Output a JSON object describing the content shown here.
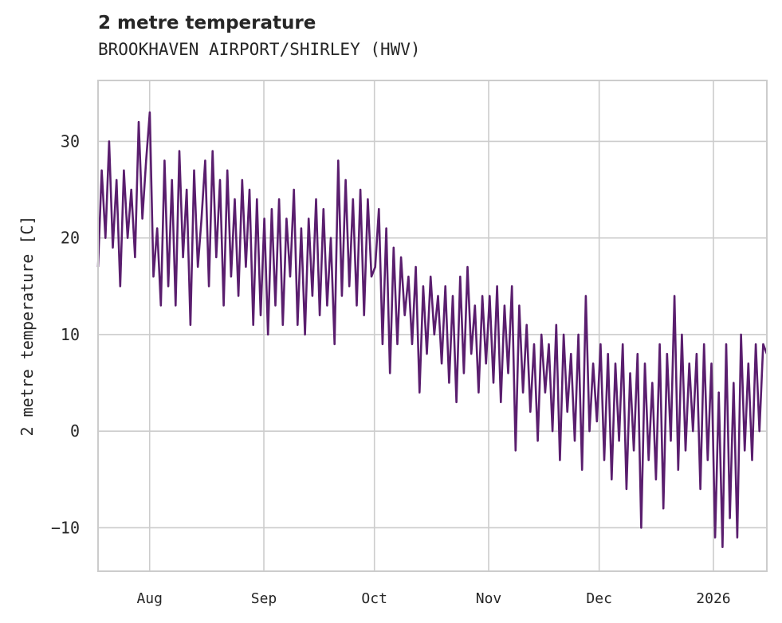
{
  "chart_data": {
    "type": "line",
    "title": "2 metre temperature",
    "subtitle": "BROOKHAVEN AIRPORT/SHIRLEY (HWV)",
    "xlabel": "",
    "ylabel": "2 metre temperature [C]",
    "x_unit": "days since Jul 18",
    "xlim": [
      0,
      181.5
    ],
    "ylim": [
      -14.5,
      36.3
    ],
    "grid": true,
    "line_color": "#5a1e6e",
    "x_ticks": [
      {
        "label": "Aug",
        "day": 14
      },
      {
        "label": "Sep",
        "day": 45
      },
      {
        "label": "Oct",
        "day": 75
      },
      {
        "label": "Nov",
        "day": 106
      },
      {
        "label": "Dec",
        "day": 136
      },
      {
        "label": "2026",
        "day": 167
      }
    ],
    "y_ticks": [
      {
        "label": "30",
        "value": 30
      },
      {
        "label": "20",
        "value": 20
      },
      {
        "label": "10",
        "value": 10
      },
      {
        "label": "0",
        "value": 0
      },
      {
        "label": "−10",
        "value": -10
      }
    ],
    "values": [
      17,
      27,
      20,
      30,
      19,
      26,
      15,
      27,
      20,
      25,
      18,
      32,
      22,
      28,
      33,
      16,
      21,
      13,
      28,
      15,
      26,
      13,
      29,
      18,
      25,
      11,
      27,
      17,
      22,
      28,
      15,
      29,
      18,
      26,
      13,
      27,
      16,
      24,
      14,
      26,
      17,
      25,
      11,
      24,
      12,
      22,
      10,
      23,
      13,
      24,
      11,
      22,
      16,
      25,
      11,
      21,
      10,
      22,
      14,
      24,
      12,
      23,
      13,
      20,
      9,
      28,
      14,
      26,
      15,
      24,
      13,
      25,
      12,
      24,
      16,
      17,
      23,
      9,
      21,
      6,
      19,
      9,
      18,
      12,
      16,
      9,
      17,
      4,
      15,
      8,
      16,
      10,
      14,
      7,
      15,
      5,
      14,
      3,
      16,
      6,
      17,
      8,
      13,
      4,
      14,
      7,
      14,
      5,
      15,
      3,
      13,
      6,
      15,
      -2,
      13,
      4,
      11,
      2,
      9,
      -1,
      10,
      4,
      9,
      0,
      11,
      -3,
      10,
      2,
      8,
      -1,
      10,
      -4,
      14,
      0,
      7,
      1,
      9,
      -3,
      8,
      -5,
      7,
      -1,
      9,
      -6,
      6,
      -2,
      8,
      -10,
      7,
      -3,
      5,
      -5,
      9,
      -8,
      8,
      -1,
      14,
      -4,
      10,
      -2,
      7,
      0,
      8,
      -6,
      9,
      -3,
      7,
      -11,
      4,
      -12,
      9,
      -9,
      5,
      -11,
      10,
      -2,
      7,
      -3,
      9,
      0,
      9,
      8
    ]
  }
}
